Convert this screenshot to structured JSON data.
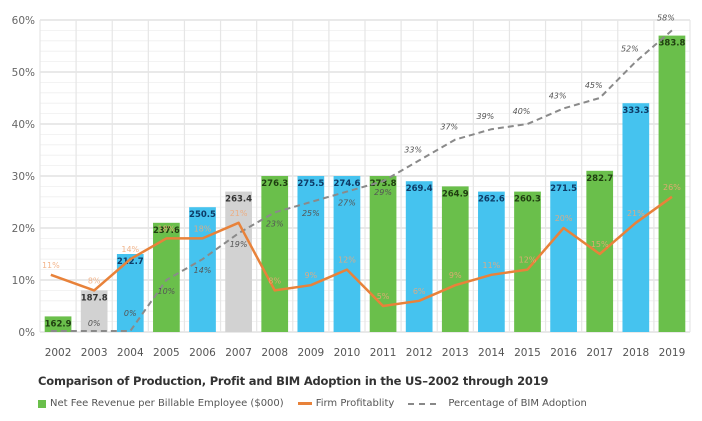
{
  "chart_data": {
    "type": "bar",
    "title": "Comparison of Production, Profit and BIM Adoption in the US–2002 through 2019",
    "xlabel": "",
    "ylabel": "",
    "ylim": [
      0,
      60
    ],
    "yticks": [
      "0%",
      "10%",
      "20%",
      "30%",
      "40%",
      "50%",
      "60%"
    ],
    "grid": true,
    "legend_position": "bottom-left",
    "categories": [
      "2002",
      "2003",
      "2004",
      "2005",
      "2006",
      "2007",
      "2008",
      "2009",
      "2010",
      "2011",
      "2012",
      "2013",
      "2014",
      "2015",
      "2016",
      "2017",
      "2018",
      "2019"
    ],
    "bar_series": {
      "name": "Net Fee Revenue per Billable Employee ($000)",
      "labels": [
        "162.9",
        "187.8",
        "212.7",
        "237.6",
        "250.5",
        "263.4",
        "276.3",
        "275.5",
        "274.6",
        "273.8",
        "269.4",
        "264.9",
        "262.6",
        "260.3",
        "271.5",
        "282.7",
        "333.3",
        "383.8"
      ],
      "heights_pct_scale": [
        3,
        8,
        15,
        21,
        24,
        27,
        30,
        30,
        30,
        30,
        29,
        28,
        27,
        27,
        29,
        31,
        44,
        57
      ],
      "colors": [
        "green",
        "gray",
        "blue",
        "green",
        "blue",
        "gray",
        "green",
        "blue",
        "blue",
        "green",
        "blue",
        "green",
        "blue",
        "green",
        "blue",
        "green",
        "blue",
        "green"
      ]
    },
    "series": [
      {
        "name": "Firm Profitablity",
        "style": "solid",
        "color": "#e8823a",
        "values": [
          11,
          8,
          14,
          18,
          18,
          21,
          8,
          9,
          12,
          5,
          6,
          9,
          11,
          12,
          20,
          15,
          21,
          26
        ]
      },
      {
        "name": "Percentage of BIM Adoption",
        "style": "dashed",
        "color": "#8a8a8a",
        "values": [
          0,
          0,
          0,
          10,
          14,
          19,
          23,
          25,
          27,
          29,
          33,
          37,
          39,
          40,
          43,
          45,
          52,
          58
        ],
        "labels": [
          "",
          "0%",
          "0%",
          "10%",
          "14%",
          "19%",
          "23%",
          "25%",
          "27%",
          "29%",
          "33%",
          "37%",
          "39%",
          "40%",
          "43%",
          "45%",
          "52%",
          "58%"
        ]
      }
    ],
    "palette": {
      "green": "#6abf4b",
      "blue": "#45c3ef",
      "gray": "#d2d2d2",
      "grid": "#e3e3e3"
    }
  },
  "caption": "Comparison of Production, Profit and BIM Adoption in the US–2002 through 2019",
  "legend": {
    "bars": "Net Fee Revenue per Billable Employee ($000)",
    "profit": "Firm Profitablity",
    "bim": "Percentage of BIM Adoption"
  }
}
